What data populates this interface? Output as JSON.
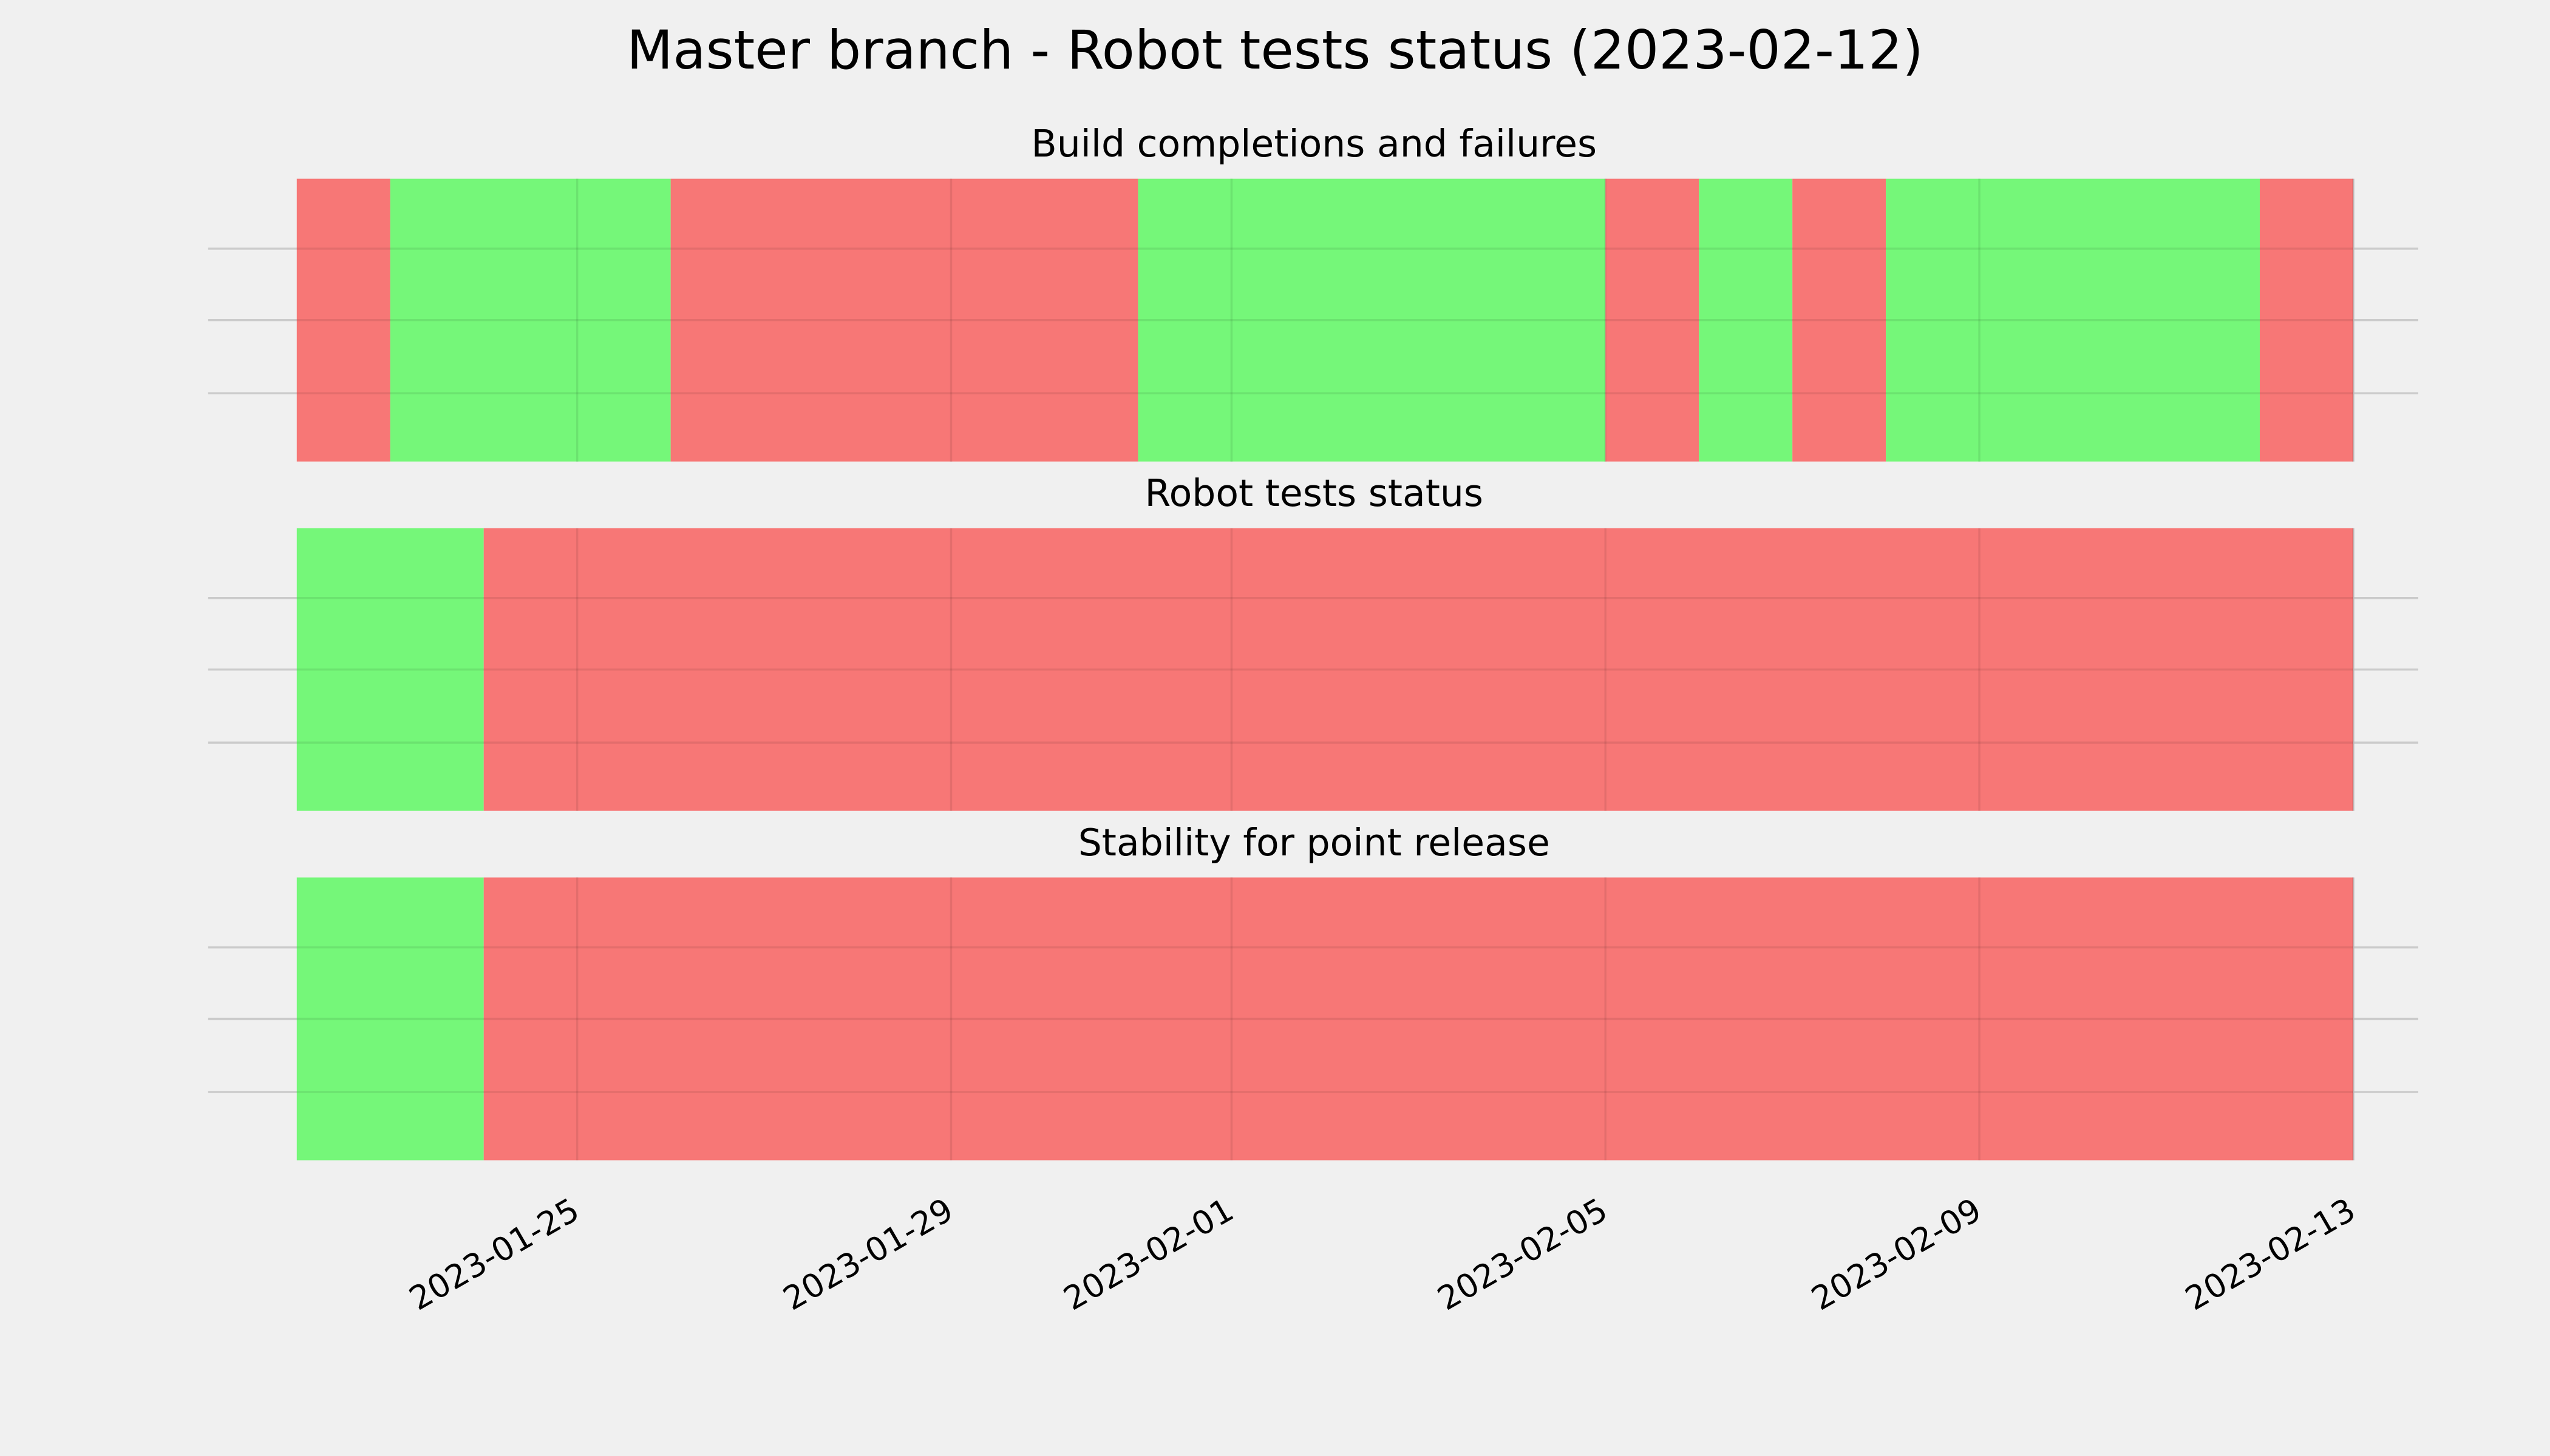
{
  "title": "Master branch - Robot tests status (2023-02-12)",
  "chart_data": [
    {
      "type": "timeline",
      "title": "Build completions and failures",
      "x": [
        "2023-01-22",
        "2023-01-23",
        "2023-01-26",
        "2023-01-31",
        "2023-02-05",
        "2023-02-06",
        "2023-02-07",
        "2023-02-08",
        "2023-02-12",
        "2023-02-13"
      ],
      "colors": [
        "#f77776",
        "#75f779",
        "#f77776",
        "#75f779",
        "#f77776",
        "#75f779",
        "#f77776",
        "#75f779",
        "#f77776"
      ],
      "xlim": [
        "2023-01-21",
        "2023-02-14"
      ],
      "xticks": [
        "2023-01-25",
        "2023-01-29",
        "2023-02-01",
        "2023-02-05",
        "2023-02-09",
        "2023-02-13"
      ],
      "grid": true
    },
    {
      "type": "timeline",
      "title": "Robot tests status",
      "x": [
        "2023-01-22",
        "2023-01-24",
        "2023-02-13"
      ],
      "colors": [
        "#75f779",
        "#f77776"
      ],
      "xlim": [
        "2023-01-21",
        "2023-02-14"
      ],
      "xticks": [
        "2023-01-25",
        "2023-01-29",
        "2023-02-01",
        "2023-02-05",
        "2023-02-09",
        "2023-02-13"
      ],
      "grid": true
    },
    {
      "type": "timeline",
      "title": "Stability for point release",
      "x": [
        "2023-01-22",
        "2023-01-24",
        "2023-02-13"
      ],
      "colors": [
        "#75f779",
        "#f77776"
      ],
      "xlim": [
        "2023-01-21",
        "2023-02-14"
      ],
      "xticks": [
        "2023-01-25",
        "2023-01-29",
        "2023-02-01",
        "2023-02-05",
        "2023-02-09",
        "2023-02-13"
      ],
      "grid": true
    }
  ]
}
